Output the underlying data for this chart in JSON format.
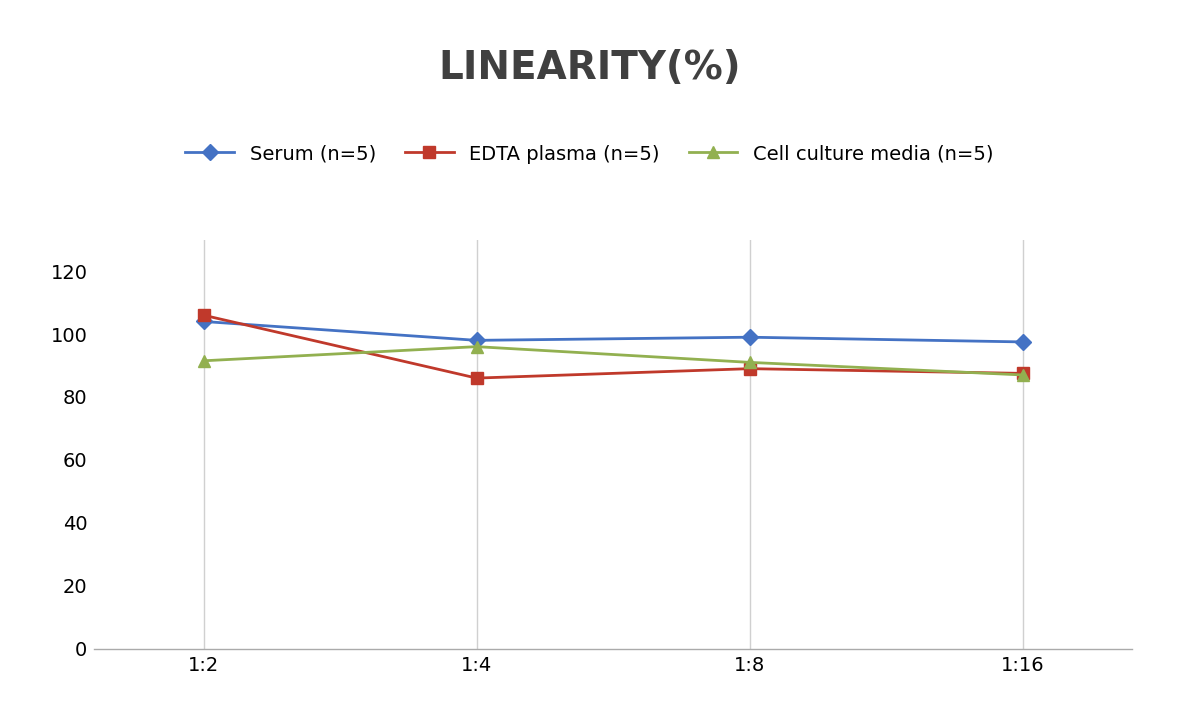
{
  "title": "LINEARITY(%)",
  "x_labels": [
    "1:2",
    "1:4",
    "1:8",
    "1:16"
  ],
  "x_positions": [
    0,
    1,
    2,
    3
  ],
  "series": [
    {
      "label": "Serum (n=5)",
      "values": [
        104,
        98,
        99,
        97.5
      ],
      "color": "#4472C4",
      "marker": "D",
      "marker_size": 8,
      "linewidth": 2
    },
    {
      "label": "EDTA plasma (n=5)",
      "values": [
        106,
        86,
        89,
        87.5
      ],
      "color": "#C0392B",
      "marker": "s",
      "marker_size": 8,
      "linewidth": 2
    },
    {
      "label": "Cell culture media (n=5)",
      "values": [
        91.5,
        96,
        91,
        87
      ],
      "color": "#92B050",
      "marker": "^",
      "marker_size": 9,
      "linewidth": 2
    }
  ],
  "ylim": [
    0,
    130
  ],
  "yticks": [
    0,
    20,
    40,
    60,
    80,
    100,
    120
  ],
  "title_fontsize": 28,
  "legend_fontsize": 14,
  "tick_fontsize": 14,
  "grid_color": "#D0D0D0",
  "background_color": "#FFFFFF",
  "title_color": "#404040"
}
